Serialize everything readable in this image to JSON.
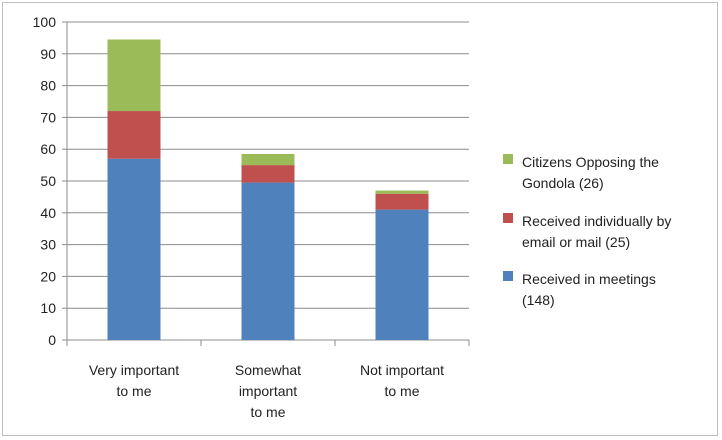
{
  "chart_data": {
    "type": "bar",
    "stacked": true,
    "categories": [
      "Very important to me",
      "Somewhat important to me",
      "Not important to me"
    ],
    "category_lines": [
      [
        "Very important",
        "to me"
      ],
      [
        "Somewhat",
        "important",
        "to me"
      ],
      [
        "Not important",
        "to me"
      ]
    ],
    "series": [
      {
        "name": "Received in meetings (148)",
        "legend_lines": [
          "Received in meetings",
          "(148)"
        ],
        "color": "#4f81bd",
        "values": [
          57,
          49.5,
          41
        ]
      },
      {
        "name": "Received individually by email or mail (25)",
        "legend_lines": [
          "Received individually by",
          "email or mail (25)"
        ],
        "color": "#c0504d",
        "values": [
          15,
          5.5,
          5
        ]
      },
      {
        "name": "Citizens Opposing the Gondola (26)",
        "legend_lines": [
          "Citizens Opposing the",
          "Gondola (26)"
        ],
        "color": "#9bbb59",
        "values": [
          22.5,
          3.5,
          1
        ]
      }
    ],
    "ylim": [
      0,
      100
    ],
    "yticks": [
      0,
      10,
      20,
      30,
      40,
      50,
      60,
      70,
      80,
      90,
      100
    ],
    "grid": true,
    "legend_position": "right",
    "title": "",
    "xlabel": "",
    "ylabel": ""
  }
}
